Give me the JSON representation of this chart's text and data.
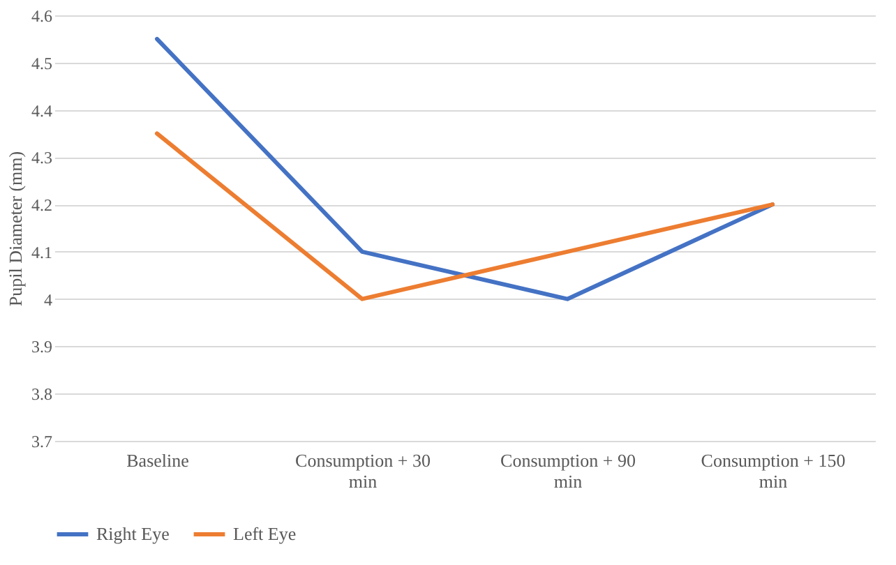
{
  "chart_data": {
    "type": "line",
    "ylabel": "Pupil Diameter (mm)",
    "categories": [
      "Baseline",
      "Consumption + 30\nmin",
      "Consumption + 90\nmin",
      "Consumption + 150\nmin"
    ],
    "series": [
      {
        "name": "Right Eye",
        "color": "#4472c4",
        "values": [
          4.55,
          4.1,
          4.0,
          4.2
        ]
      },
      {
        "name": "Left Eye",
        "color": "#ed7d31",
        "values": [
          4.35,
          4.0,
          4.1,
          4.2
        ]
      }
    ],
    "ylim": [
      3.7,
      4.6
    ],
    "yticks": [
      3.7,
      3.8,
      3.9,
      4,
      4.1,
      4.2,
      4.3,
      4.4,
      4.5,
      4.6
    ],
    "grid": "y",
    "legend": "bottom",
    "marker": "none",
    "line_style": "solid"
  }
}
